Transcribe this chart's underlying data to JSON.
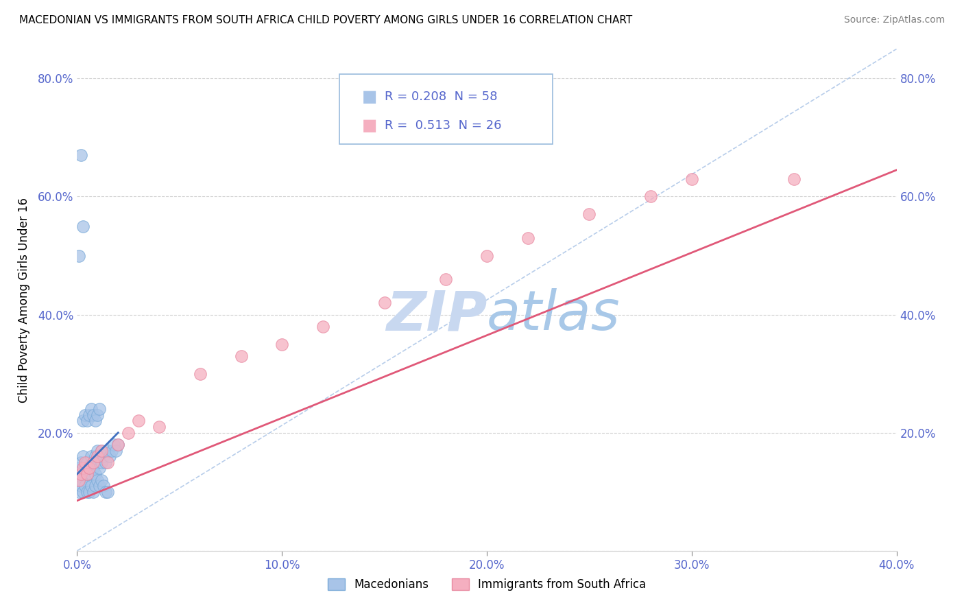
{
  "title": "MACEDONIAN VS IMMIGRANTS FROM SOUTH AFRICA CHILD POVERTY AMONG GIRLS UNDER 16 CORRELATION CHART",
  "source": "Source: ZipAtlas.com",
  "ylabel": "Child Poverty Among Girls Under 16",
  "xlim": [
    0.0,
    0.4
  ],
  "ylim": [
    0.0,
    0.85
  ],
  "ytick_positions": [
    0.0,
    0.2,
    0.4,
    0.6,
    0.8
  ],
  "ytick_labels_left": [
    "",
    "20.0%",
    "40.0%",
    "60.0%",
    "80.0%"
  ],
  "ytick_labels_right": [
    "",
    "20.0%",
    "40.0%",
    "60.0%",
    "80.0%"
  ],
  "xtick_positions": [
    0.0,
    0.1,
    0.2,
    0.3,
    0.4
  ],
  "xtick_labels": [
    "0.0%",
    "10.0%",
    "20.0%",
    "30.0%",
    "40.0%"
  ],
  "grid_yticks": [
    0.0,
    0.2,
    0.4,
    0.6,
    0.8
  ],
  "macedonian_R": 0.208,
  "macedonian_N": 58,
  "immigrant_R": 0.513,
  "immigrant_N": 26,
  "macedonian_color": "#a8c4e8",
  "macedonian_edge": "#7aaad8",
  "immigrant_color": "#f5afc0",
  "immigrant_edge": "#e888a0",
  "macedonian_line_color": "#4070c0",
  "immigrant_line_color": "#e05878",
  "diagonal_color": "#b0c8e8",
  "watermark_zip": "ZIP",
  "watermark_atlas": "atlas",
  "watermark_color": "#c8d8f0",
  "legend_macedonian": "Macedonians",
  "legend_immigrant": "Immigrants from South Africa",
  "tick_color": "#5566cc",
  "mac_x": [
    0.001,
    0.002,
    0.003,
    0.003,
    0.004,
    0.004,
    0.005,
    0.005,
    0.006,
    0.006,
    0.007,
    0.007,
    0.008,
    0.008,
    0.009,
    0.009,
    0.01,
    0.01,
    0.011,
    0.011,
    0.012,
    0.012,
    0.013,
    0.014,
    0.015,
    0.016,
    0.017,
    0.018,
    0.019,
    0.02,
    0.001,
    0.002,
    0.002,
    0.003,
    0.004,
    0.005,
    0.006,
    0.007,
    0.008,
    0.009,
    0.01,
    0.011,
    0.012,
    0.013,
    0.014,
    0.015,
    0.003,
    0.004,
    0.005,
    0.006,
    0.007,
    0.008,
    0.009,
    0.01,
    0.011,
    0.001,
    0.002,
    0.003
  ],
  "mac_y": [
    0.14,
    0.15,
    0.13,
    0.16,
    0.12,
    0.14,
    0.13,
    0.15,
    0.12,
    0.14,
    0.13,
    0.16,
    0.14,
    0.15,
    0.13,
    0.16,
    0.15,
    0.17,
    0.14,
    0.16,
    0.15,
    0.17,
    0.16,
    0.15,
    0.17,
    0.16,
    0.17,
    0.18,
    0.17,
    0.18,
    0.1,
    0.11,
    0.12,
    0.1,
    0.11,
    0.1,
    0.1,
    0.11,
    0.1,
    0.11,
    0.12,
    0.11,
    0.12,
    0.11,
    0.1,
    0.1,
    0.22,
    0.23,
    0.22,
    0.23,
    0.24,
    0.23,
    0.22,
    0.23,
    0.24,
    0.5,
    0.67,
    0.55
  ],
  "imm_x": [
    0.001,
    0.002,
    0.003,
    0.004,
    0.005,
    0.006,
    0.008,
    0.01,
    0.012,
    0.015,
    0.02,
    0.025,
    0.03,
    0.04,
    0.06,
    0.08,
    0.1,
    0.12,
    0.15,
    0.18,
    0.2,
    0.22,
    0.25,
    0.28,
    0.3,
    0.35
  ],
  "imm_y": [
    0.12,
    0.13,
    0.14,
    0.15,
    0.13,
    0.14,
    0.15,
    0.16,
    0.17,
    0.15,
    0.18,
    0.2,
    0.22,
    0.21,
    0.3,
    0.33,
    0.35,
    0.38,
    0.42,
    0.46,
    0.5,
    0.53,
    0.57,
    0.6,
    0.63,
    0.63
  ],
  "mac_line_x": [
    0.0,
    0.02
  ],
  "mac_line_y": [
    0.13,
    0.2
  ],
  "imm_line_x": [
    0.0,
    0.4
  ],
  "imm_line_y": [
    0.085,
    0.645
  ],
  "diag_line_x": [
    0.0,
    0.4
  ],
  "diag_line_y": [
    0.0,
    0.85
  ]
}
